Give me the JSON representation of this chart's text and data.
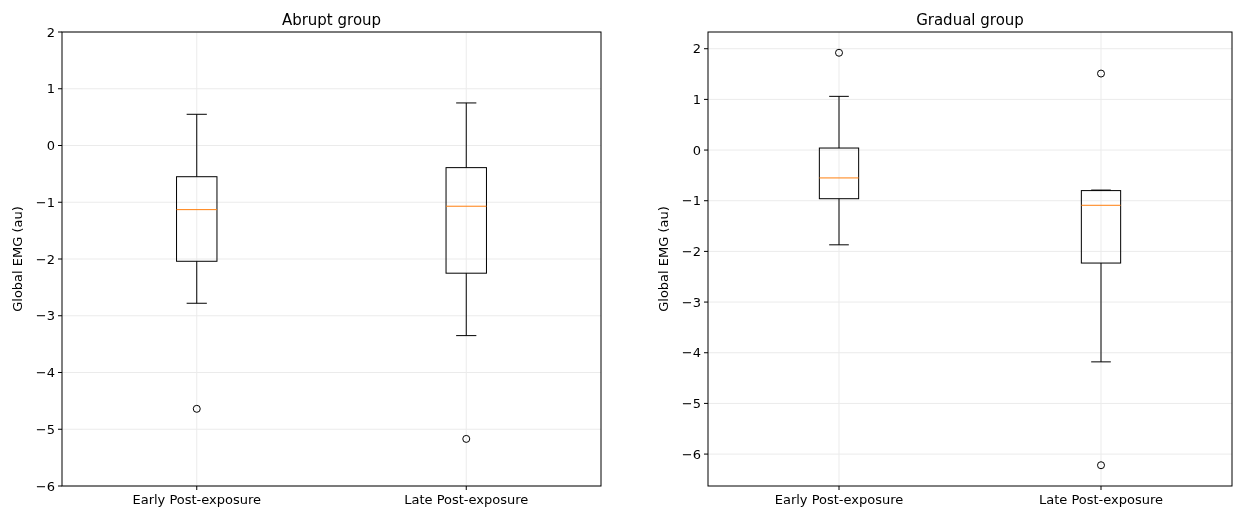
{
  "chart_data": [
    {
      "type": "box",
      "title": "Abrupt group",
      "ylabel": "Global EMG (au)",
      "categories": [
        "Early Post-exposure",
        "Late Post-exposure"
      ],
      "ylim": [
        -6,
        2
      ],
      "yticks": [
        -6,
        -5,
        -4,
        -3,
        -2,
        -1,
        0,
        1,
        2
      ],
      "grid": true,
      "series": [
        {
          "color": "#000000",
          "boxes": [
            {
              "low": -2.78,
              "q1": -2.04,
              "median": -1.13,
              "q3": -0.55,
              "high": 0.55,
              "outliers": [
                -4.64
              ]
            },
            {
              "low": -3.35,
              "q1": -2.25,
              "median": -1.07,
              "q3": -0.39,
              "high": 0.75,
              "outliers": [
                -5.17
              ]
            }
          ]
        }
      ]
    },
    {
      "type": "box",
      "title": "Gradual group",
      "ylabel": "Global EMG (au)",
      "categories": [
        "Early Post-exposure",
        "Late Post-exposure"
      ],
      "ylim": [
        -6.63,
        2.33
      ],
      "yticks": [
        -6,
        -5,
        -4,
        -3,
        -2,
        -1,
        0,
        1,
        2
      ],
      "grid": true,
      "series": [
        {
          "color": "#000000",
          "boxes": [
            {
              "low": -1.87,
              "q1": -0.96,
              "median": -0.55,
              "q3": 0.04,
              "high": 1.06,
              "outliers": [
                1.92
              ]
            },
            {
              "low": -4.18,
              "q1": -2.23,
              "median": -1.09,
              "q3": -0.8,
              "high": -0.79,
              "outliers": [
                1.51,
                -6.22
              ]
            }
          ]
        }
      ]
    }
  ]
}
